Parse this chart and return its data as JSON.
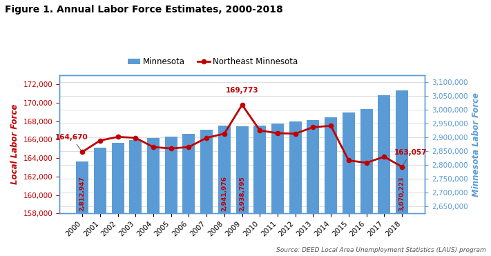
{
  "years": [
    2000,
    2001,
    2002,
    2003,
    2004,
    2005,
    2006,
    2007,
    2008,
    2009,
    2010,
    2011,
    2012,
    2013,
    2014,
    2015,
    2016,
    2017,
    2018
  ],
  "minnesota_lf": [
    2812947,
    2864000,
    2880000,
    2890000,
    2897000,
    2903000,
    2912000,
    2928000,
    2941976,
    2938795,
    2942000,
    2950000,
    2957000,
    2963000,
    2972000,
    2990000,
    3002000,
    3053000,
    3070223
  ],
  "northeast_lf": [
    164670,
    165900,
    166300,
    166200,
    165200,
    165050,
    165200,
    166200,
    166650,
    169773,
    167000,
    166700,
    166650,
    167350,
    167500,
    163750,
    163500,
    164150,
    163057
  ],
  "bar_color": "#5b9bd5",
  "line_color": "#c00000",
  "title": "Figure 1. Annual Labor Force Estimates, 2000-2018",
  "ylabel_left": "Local Labor Force",
  "ylabel_right": "Minnesota Labor Force",
  "source_text": "Source: DEED Local Area Unemployment Statistics (LAUS) program",
  "ylim_left": [
    158000,
    173000
  ],
  "ylim_right": [
    2625000,
    3125000
  ],
  "yticks_left": [
    158000,
    160000,
    162000,
    164000,
    166000,
    168000,
    170000,
    172000
  ],
  "yticks_right": [
    2650000,
    2700000,
    2750000,
    2800000,
    2850000,
    2900000,
    2950000,
    3000000,
    3050000,
    3100000
  ],
  "bar_annotations": [
    [
      0,
      "2,812,947"
    ],
    [
      8,
      "2,941,976"
    ],
    [
      9,
      "2,938,795"
    ],
    [
      18,
      "3,070,223"
    ]
  ],
  "line_annotations": [
    [
      0,
      "164,670",
      -0.6,
      1200
    ],
    [
      9,
      "169,773",
      0,
      1200
    ],
    [
      18,
      "163,057",
      0.5,
      1200
    ]
  ],
  "legend_labels": [
    "Minnesota",
    "Northeast Minnesota"
  ],
  "title_fontsize": 10,
  "axis_label_color_left": "#c00000",
  "axis_label_color_right": "#5b9bd5",
  "tick_color_left": "#c00000",
  "tick_color_right": "#5b9bd5",
  "border_color": "#5b9bd5",
  "grid_color": "#d0d0d0"
}
